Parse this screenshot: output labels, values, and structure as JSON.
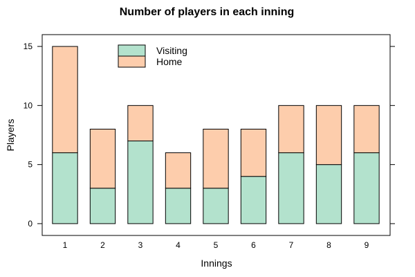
{
  "chart_data": {
    "type": "bar",
    "stacked": true,
    "title": "Number of players in each inning",
    "xlabel": "Innings",
    "ylabel": "Players",
    "categories": [
      "1",
      "2",
      "3",
      "4",
      "5",
      "6",
      "7",
      "8",
      "9"
    ],
    "series": [
      {
        "name": "Visiting",
        "values": [
          6,
          3,
          7,
          3,
          3,
          4,
          6,
          5,
          6
        ],
        "color": "#b3e2cd"
      },
      {
        "name": "Home",
        "values": [
          9,
          5,
          3,
          3,
          5,
          4,
          4,
          5,
          4
        ],
        "color": "#fdcdac"
      }
    ],
    "ylim": [
      -1,
      16
    ],
    "yticks": [
      0,
      5,
      10,
      15
    ],
    "legend_position": "top-left (inside plot)",
    "grid": false,
    "bar_outline_color": "#000000"
  }
}
